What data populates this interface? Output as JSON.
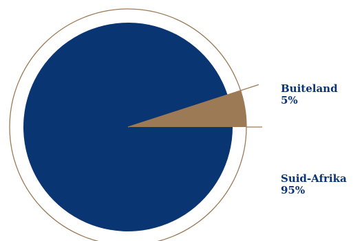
{
  "chart_data": {
    "type": "pie",
    "categories": [
      "Buiteland",
      "Suid-Afrika"
    ],
    "values": [
      5,
      95
    ],
    "value_labels": [
      "5%",
      "95%"
    ],
    "colors": [
      "#9c7a56",
      "#0a3573"
    ],
    "ring_color": "#9c7a56",
    "label_color": "#0a3573",
    "exploded_slice": "Buiteland",
    "legend_placement": "right"
  }
}
